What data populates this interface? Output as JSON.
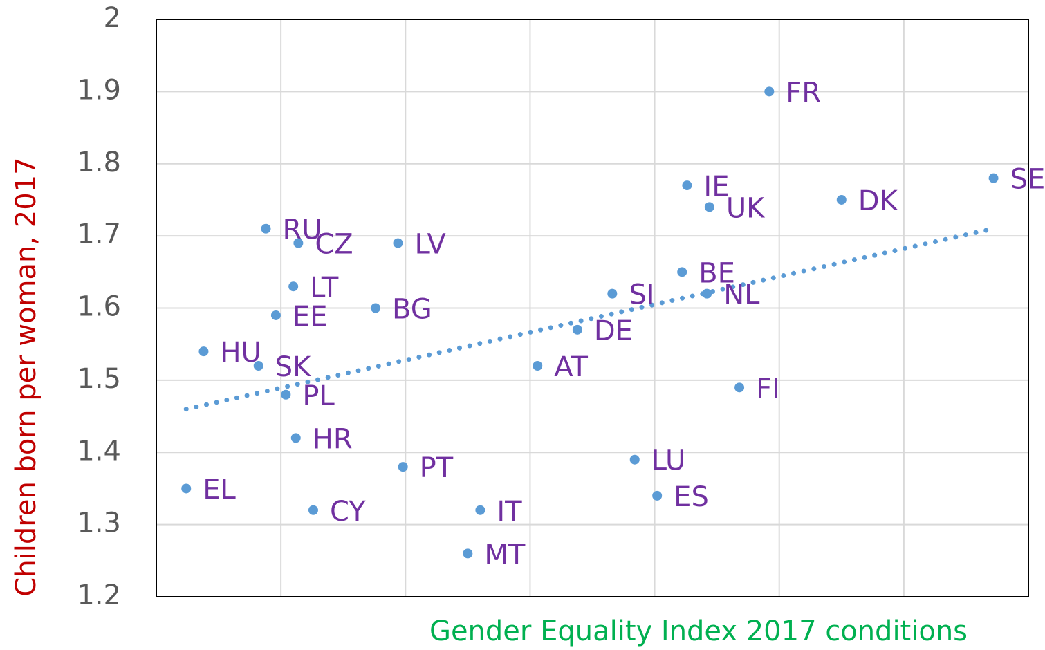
{
  "chart_data": {
    "type": "scatter",
    "xlabel": "Gender Equality Index 2017 conditions",
    "ylabel": "Children born per woman, 2017",
    "labels": [
      "EL",
      "HU",
      "SK",
      "RU",
      "EE",
      "PL",
      "LT",
      "HR",
      "CZ",
      "CY",
      "BG",
      "LV",
      "PT",
      "MT",
      "IT",
      "AT",
      "DE",
      "SI",
      "LU",
      "ES",
      "BE",
      "IE",
      "NL",
      "UK",
      "FI",
      "FR",
      "DK",
      "SE"
    ],
    "x": [
      46.2,
      46.9,
      49.1,
      49.4,
      49.8,
      50.2,
      50.5,
      50.6,
      50.7,
      51.3,
      53.8,
      54.7,
      54.9,
      57.5,
      58.0,
      60.3,
      61.9,
      63.3,
      64.2,
      65.1,
      66.1,
      66.3,
      67.1,
      67.2,
      68.4,
      69.6,
      72.5,
      78.6
    ],
    "y": [
      1.35,
      1.54,
      1.52,
      1.71,
      1.59,
      1.48,
      1.63,
      1.42,
      1.69,
      1.32,
      1.6,
      1.69,
      1.38,
      1.26,
      1.32,
      1.52,
      1.57,
      1.62,
      1.39,
      1.34,
      1.65,
      1.77,
      1.62,
      1.74,
      1.49,
      1.9,
      1.75,
      1.78
    ],
    "trendline": {
      "x": [
        46.2,
        78.6
      ],
      "y": [
        1.46,
        1.71
      ]
    },
    "xlim": [
      45,
      80
    ],
    "xticks": [
      50,
      55,
      60,
      65,
      70,
      75
    ],
    "ylim": [
      1.2,
      2
    ],
    "yticks": [
      1.2,
      1.3,
      1.4,
      1.5,
      1.6,
      1.7,
      1.8,
      1.9,
      2
    ],
    "grid": true,
    "color": "#5b9bd5",
    "label_color": "#7030a0",
    "trendline_color": "#5b9bd5",
    "ylabel_color": "#c00000",
    "xlabel_color": "#00b050"
  }
}
